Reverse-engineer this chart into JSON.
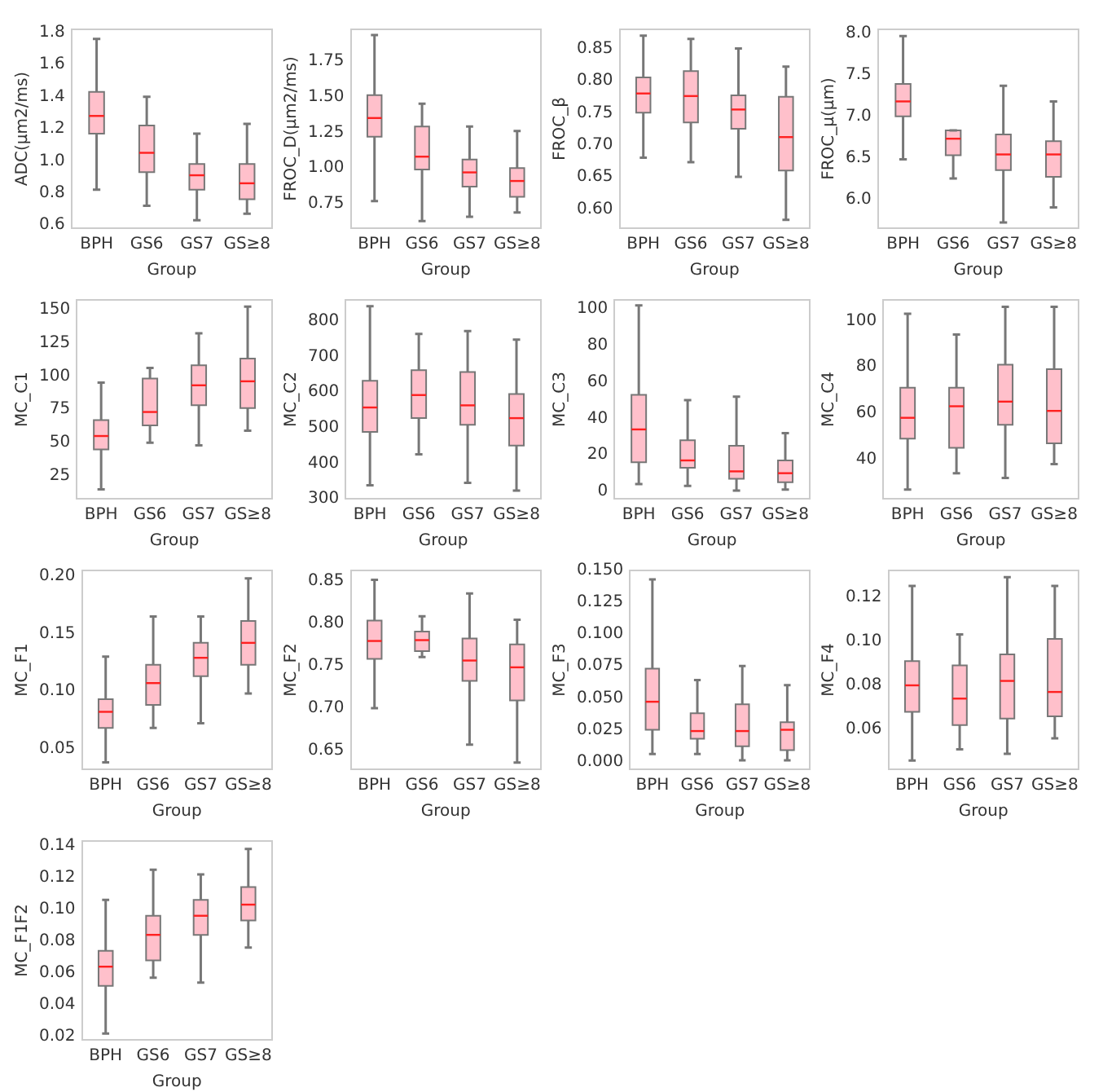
{
  "chart_data": [
    {
      "type": "box",
      "xlabel": "Group",
      "ylabel": "ADC(μm2/ms)",
      "categories": [
        "BPH",
        "GS6",
        "GS7",
        "GS≥8"
      ],
      "color": "#ffc0cb",
      "ylim": [
        0.58,
        1.82
      ],
      "yticks": [
        0.6,
        0.8,
        {
          "value": 1,
          "label": "1.0"
        },
        1.2,
        1.4,
        1.6,
        1.8
      ],
      "grid": false,
      "boxes": [
        {
          "low": 0.82,
          "q1": 1.17,
          "median": 1.28,
          "q3": 1.43,
          "high": 1.76
        },
        {
          "low": 0.72,
          "q1": 0.93,
          "median": 1.05,
          "q3": 1.22,
          "high": 1.4
        },
        {
          "low": 0.63,
          "q1": 0.82,
          "median": 0.91,
          "q3": 0.98,
          "high": 1.17
        },
        {
          "low": 0.67,
          "q1": 0.76,
          "median": 0.86,
          "q3": 0.98,
          "high": 1.23
        }
      ]
    },
    {
      "type": "box",
      "xlabel": "Group",
      "ylabel": "FROC_D(μm2/ms)",
      "categories": [
        "BPH",
        "GS6",
        "GS7",
        "GS≥8"
      ],
      "color": "#ffc0cb",
      "ylim": [
        0.58,
        1.97
      ],
      "yticks": [
        0.75,
        {
          "value": 1,
          "label": "1.00"
        },
        1.25,
        {
          "value": 1.5,
          "label": "1.50"
        },
        1.75
      ],
      "grid": false,
      "boxes": [
        {
          "low": 0.77,
          "q1": 1.22,
          "median": 1.35,
          "q3": 1.51,
          "high": 1.93
        },
        {
          "low": 0.63,
          "q1": 0.99,
          "median": 1.08,
          "q3": 1.29,
          "high": 1.45
        },
        {
          "low": 0.66,
          "q1": 0.87,
          "median": 0.97,
          "q3": 1.06,
          "high": 1.29
        },
        {
          "low": 0.69,
          "q1": 0.8,
          "median": 0.91,
          "q3": 1.0,
          "high": 1.26
        }
      ]
    },
    {
      "type": "box",
      "xlabel": "Group",
      "ylabel": "FROC_β",
      "categories": [
        "BPH",
        "GS6",
        "GS7",
        "GS≥8"
      ],
      "color": "#ffc0cb",
      "ylim": [
        0.57,
        0.88
      ],
      "yticks": [
        {
          "value": 0.6,
          "label": "0.60"
        },
        0.65,
        {
          "value": 0.7,
          "label": "0.70"
        },
        0.75,
        {
          "value": 0.8,
          "label": "0.80"
        },
        0.85
      ],
      "grid": false,
      "boxes": [
        {
          "low": 0.68,
          "q1": 0.75,
          "median": 0.78,
          "q3": 0.805,
          "high": 0.87
        },
        {
          "low": 0.673,
          "q1": 0.735,
          "median": 0.776,
          "q3": 0.815,
          "high": 0.865
        },
        {
          "low": 0.65,
          "q1": 0.725,
          "median": 0.755,
          "q3": 0.777,
          "high": 0.85
        },
        {
          "low": 0.583,
          "q1": 0.66,
          "median": 0.712,
          "q3": 0.775,
          "high": 0.822
        }
      ]
    },
    {
      "type": "box",
      "xlabel": "Group",
      "ylabel": "FROC_μ(μm)",
      "categories": [
        "BPH",
        "GS6",
        "GS7",
        "GS≥8"
      ],
      "color": "#ffc0cb",
      "ylim": [
        5.65,
        8.05
      ],
      "yticks": [
        {
          "value": 6,
          "label": "6.0"
        },
        6.5,
        {
          "value": 7,
          "label": "7.0"
        },
        7.5,
        {
          "value": 8,
          "label": "8.0"
        }
      ],
      "grid": false,
      "boxes": [
        {
          "low": 6.48,
          "q1": 7.0,
          "median": 7.18,
          "q3": 7.39,
          "high": 7.97
        },
        {
          "low": 6.25,
          "q1": 6.53,
          "median": 6.73,
          "q3": 6.83,
          "high": 6.83
        },
        {
          "low": 5.72,
          "q1": 6.35,
          "median": 6.54,
          "q3": 6.78,
          "high": 7.37
        },
        {
          "low": 5.9,
          "q1": 6.27,
          "median": 6.54,
          "q3": 6.7,
          "high": 7.18
        }
      ]
    },
    {
      "type": "box",
      "xlabel": "Group",
      "ylabel": "MC_C1",
      "categories": [
        "BPH",
        "GS6",
        "GS7",
        "GS≥8"
      ],
      "color": "#ffc0cb",
      "ylim": [
        8,
        157
      ],
      "yticks": [
        25,
        50,
        75,
        100,
        125,
        150
      ],
      "grid": false,
      "boxes": [
        {
          "low": 15,
          "q1": 45,
          "median": 55,
          "q3": 67,
          "high": 95
        },
        {
          "low": 50,
          "q1": 63,
          "median": 73,
          "q3": 98,
          "high": 106
        },
        {
          "low": 48,
          "q1": 78,
          "median": 93,
          "q3": 108,
          "high": 132
        },
        {
          "low": 59,
          "q1": 76,
          "median": 96,
          "q3": 113,
          "high": 152
        }
      ]
    },
    {
      "type": "box",
      "xlabel": "Group",
      "ylabel": "MC_C2",
      "categories": [
        "BPH",
        "GS6",
        "GS7",
        "GS≥8"
      ],
      "color": "#ffc0cb",
      "ylim": [
        300,
        860
      ],
      "yticks": [
        300,
        400,
        500,
        600,
        700,
        800
      ],
      "grid": false,
      "boxes": [
        {
          "low": 338,
          "q1": 488,
          "median": 557,
          "q3": 632,
          "high": 842
        },
        {
          "low": 425,
          "q1": 527,
          "median": 592,
          "q3": 662,
          "high": 764
        },
        {
          "low": 345,
          "q1": 508,
          "median": 563,
          "q3": 657,
          "high": 772
        },
        {
          "low": 323,
          "q1": 450,
          "median": 527,
          "q3": 595,
          "high": 748
        }
      ]
    },
    {
      "type": "box",
      "xlabel": "Group",
      "ylabel": "MC_C3",
      "categories": [
        "BPH",
        "GS6",
        "GS7",
        "GS≥8"
      ],
      "color": "#ffc0cb",
      "ylim": [
        -4,
        105
      ],
      "yticks": [
        0,
        20,
        40,
        60,
        80,
        100
      ],
      "grid": false,
      "boxes": [
        {
          "low": 4,
          "q1": 16,
          "median": 34,
          "q3": 53,
          "high": 102
        },
        {
          "low": 3,
          "q1": 13,
          "median": 17,
          "q3": 28,
          "high": 50
        },
        {
          "low": 0.5,
          "q1": 7,
          "median": 11,
          "q3": 25,
          "high": 52
        },
        {
          "low": 1,
          "q1": 5,
          "median": 10,
          "q3": 17,
          "high": 32
        }
      ]
    },
    {
      "type": "box",
      "xlabel": "Group",
      "ylabel": "MC_C4",
      "categories": [
        "BPH",
        "GS6",
        "GS7",
        "GS≥8"
      ],
      "color": "#ffc0cb",
      "ylim": [
        23,
        109
      ],
      "yticks": [
        40,
        60,
        80,
        100
      ],
      "grid": false,
      "boxes": [
        {
          "low": 27,
          "q1": 49,
          "median": 58,
          "q3": 71,
          "high": 103
        },
        {
          "low": 34,
          "q1": 45,
          "median": 63,
          "q3": 71,
          "high": 94
        },
        {
          "low": 32,
          "q1": 55,
          "median": 65,
          "q3": 81,
          "high": 106
        },
        {
          "low": 38,
          "q1": 47,
          "median": 61,
          "q3": 79,
          "high": 106
        }
      ]
    },
    {
      "type": "box",
      "xlabel": "Group",
      "ylabel": "MC_F1",
      "categories": [
        "BPH",
        "GS6",
        "GS7",
        "GS≥8"
      ],
      "color": "#ffc0cb",
      "ylim": [
        0.032,
        0.205
      ],
      "yticks": [
        0.05,
        {
          "value": 0.1,
          "label": "0.10"
        },
        0.15,
        {
          "value": 0.2,
          "label": "0.20"
        }
      ],
      "grid": false,
      "boxes": [
        {
          "low": 0.038,
          "q1": 0.068,
          "median": 0.082,
          "q3": 0.093,
          "high": 0.13
        },
        {
          "low": 0.068,
          "q1": 0.088,
          "median": 0.107,
          "q3": 0.123,
          "high": 0.165
        },
        {
          "low": 0.072,
          "q1": 0.113,
          "median": 0.129,
          "q3": 0.142,
          "high": 0.165
        },
        {
          "low": 0.098,
          "q1": 0.123,
          "median": 0.142,
          "q3": 0.161,
          "high": 0.198
        }
      ]
    },
    {
      "type": "box",
      "xlabel": "Group",
      "ylabel": "MC_F2",
      "categories": [
        "BPH",
        "GS6",
        "GS7",
        "GS≥8"
      ],
      "color": "#ffc0cb",
      "ylim": [
        0.628,
        0.862
      ],
      "yticks": [
        0.65,
        {
          "value": 0.7,
          "label": "0.70"
        },
        0.75,
        {
          "value": 0.8,
          "label": "0.80"
        },
        0.85
      ],
      "grid": false,
      "boxes": [
        {
          "low": 0.7,
          "q1": 0.758,
          "median": 0.779,
          "q3": 0.803,
          "high": 0.851
        },
        {
          "low": 0.76,
          "q1": 0.767,
          "median": 0.78,
          "q3": 0.79,
          "high": 0.808
        },
        {
          "low": 0.657,
          "q1": 0.732,
          "median": 0.756,
          "q3": 0.782,
          "high": 0.835
        },
        {
          "low": 0.636,
          "q1": 0.709,
          "median": 0.748,
          "q3": 0.775,
          "high": 0.804
        }
      ]
    },
    {
      "type": "box",
      "xlabel": "Group",
      "ylabel": "MC_F3",
      "categories": [
        "BPH",
        "GS6",
        "GS7",
        "GS≥8"
      ],
      "color": "#ffc0cb",
      "ylim": [
        -0.006,
        0.15
      ],
      "yticks": [
        {
          "value": 0,
          "label": "0.000"
        },
        0.025,
        {
          "value": 0.05,
          "label": "0.050"
        },
        0.075,
        {
          "value": 0.1,
          "label": "0.100"
        },
        0.125,
        {
          "value": 0.15,
          "label": "0.150"
        }
      ],
      "grid": false,
      "boxes": [
        {
          "low": 0.006,
          "q1": 0.025,
          "median": 0.047,
          "q3": 0.073,
          "high": 0.143
        },
        {
          "low": 0.006,
          "q1": 0.018,
          "median": 0.024,
          "q3": 0.038,
          "high": 0.064
        },
        {
          "low": 0.001,
          "q1": 0.012,
          "median": 0.024,
          "q3": 0.045,
          "high": 0.075
        },
        {
          "low": 0.001,
          "q1": 0.009,
          "median": 0.025,
          "q3": 0.031,
          "high": 0.06
        }
      ]
    },
    {
      "type": "box",
      "xlabel": "Group",
      "ylabel": "MC_F4",
      "categories": [
        "BPH",
        "GS6",
        "GS7",
        "GS≥8"
      ],
      "color": "#ffc0cb",
      "ylim": [
        0.042,
        0.132
      ],
      "yticks": [
        0.06,
        0.08,
        {
          "value": 0.1,
          "label": "0.10"
        },
        0.12
      ],
      "grid": false,
      "boxes": [
        {
          "low": 0.046,
          "q1": 0.068,
          "median": 0.08,
          "q3": 0.091,
          "high": 0.125
        },
        {
          "low": 0.051,
          "q1": 0.062,
          "median": 0.074,
          "q3": 0.089,
          "high": 0.103
        },
        {
          "low": 0.049,
          "q1": 0.065,
          "median": 0.082,
          "q3": 0.094,
          "high": 0.129
        },
        {
          "low": 0.056,
          "q1": 0.066,
          "median": 0.077,
          "q3": 0.101,
          "high": 0.125
        }
      ]
    },
    {
      "type": "box",
      "xlabel": "Group",
      "ylabel": "MC_F1F2",
      "categories": [
        "BPH",
        "GS6",
        "GS7",
        "GS≥8"
      ],
      "color": "#ffc0cb",
      "ylim": [
        0.018,
        0.143
      ],
      "yticks": [
        0.02,
        0.04,
        0.06,
        0.08,
        {
          "value": 0.1,
          "label": "0.10"
        },
        0.12,
        0.14
      ],
      "grid": false,
      "boxes": [
        {
          "low": 0.022,
          "q1": 0.052,
          "median": 0.064,
          "q3": 0.074,
          "high": 0.106
        },
        {
          "low": 0.057,
          "q1": 0.068,
          "median": 0.084,
          "q3": 0.096,
          "high": 0.125
        },
        {
          "low": 0.054,
          "q1": 0.084,
          "median": 0.096,
          "q3": 0.106,
          "high": 0.122
        },
        {
          "low": 0.076,
          "q1": 0.093,
          "median": 0.103,
          "q3": 0.114,
          "high": 0.138
        }
      ]
    }
  ]
}
